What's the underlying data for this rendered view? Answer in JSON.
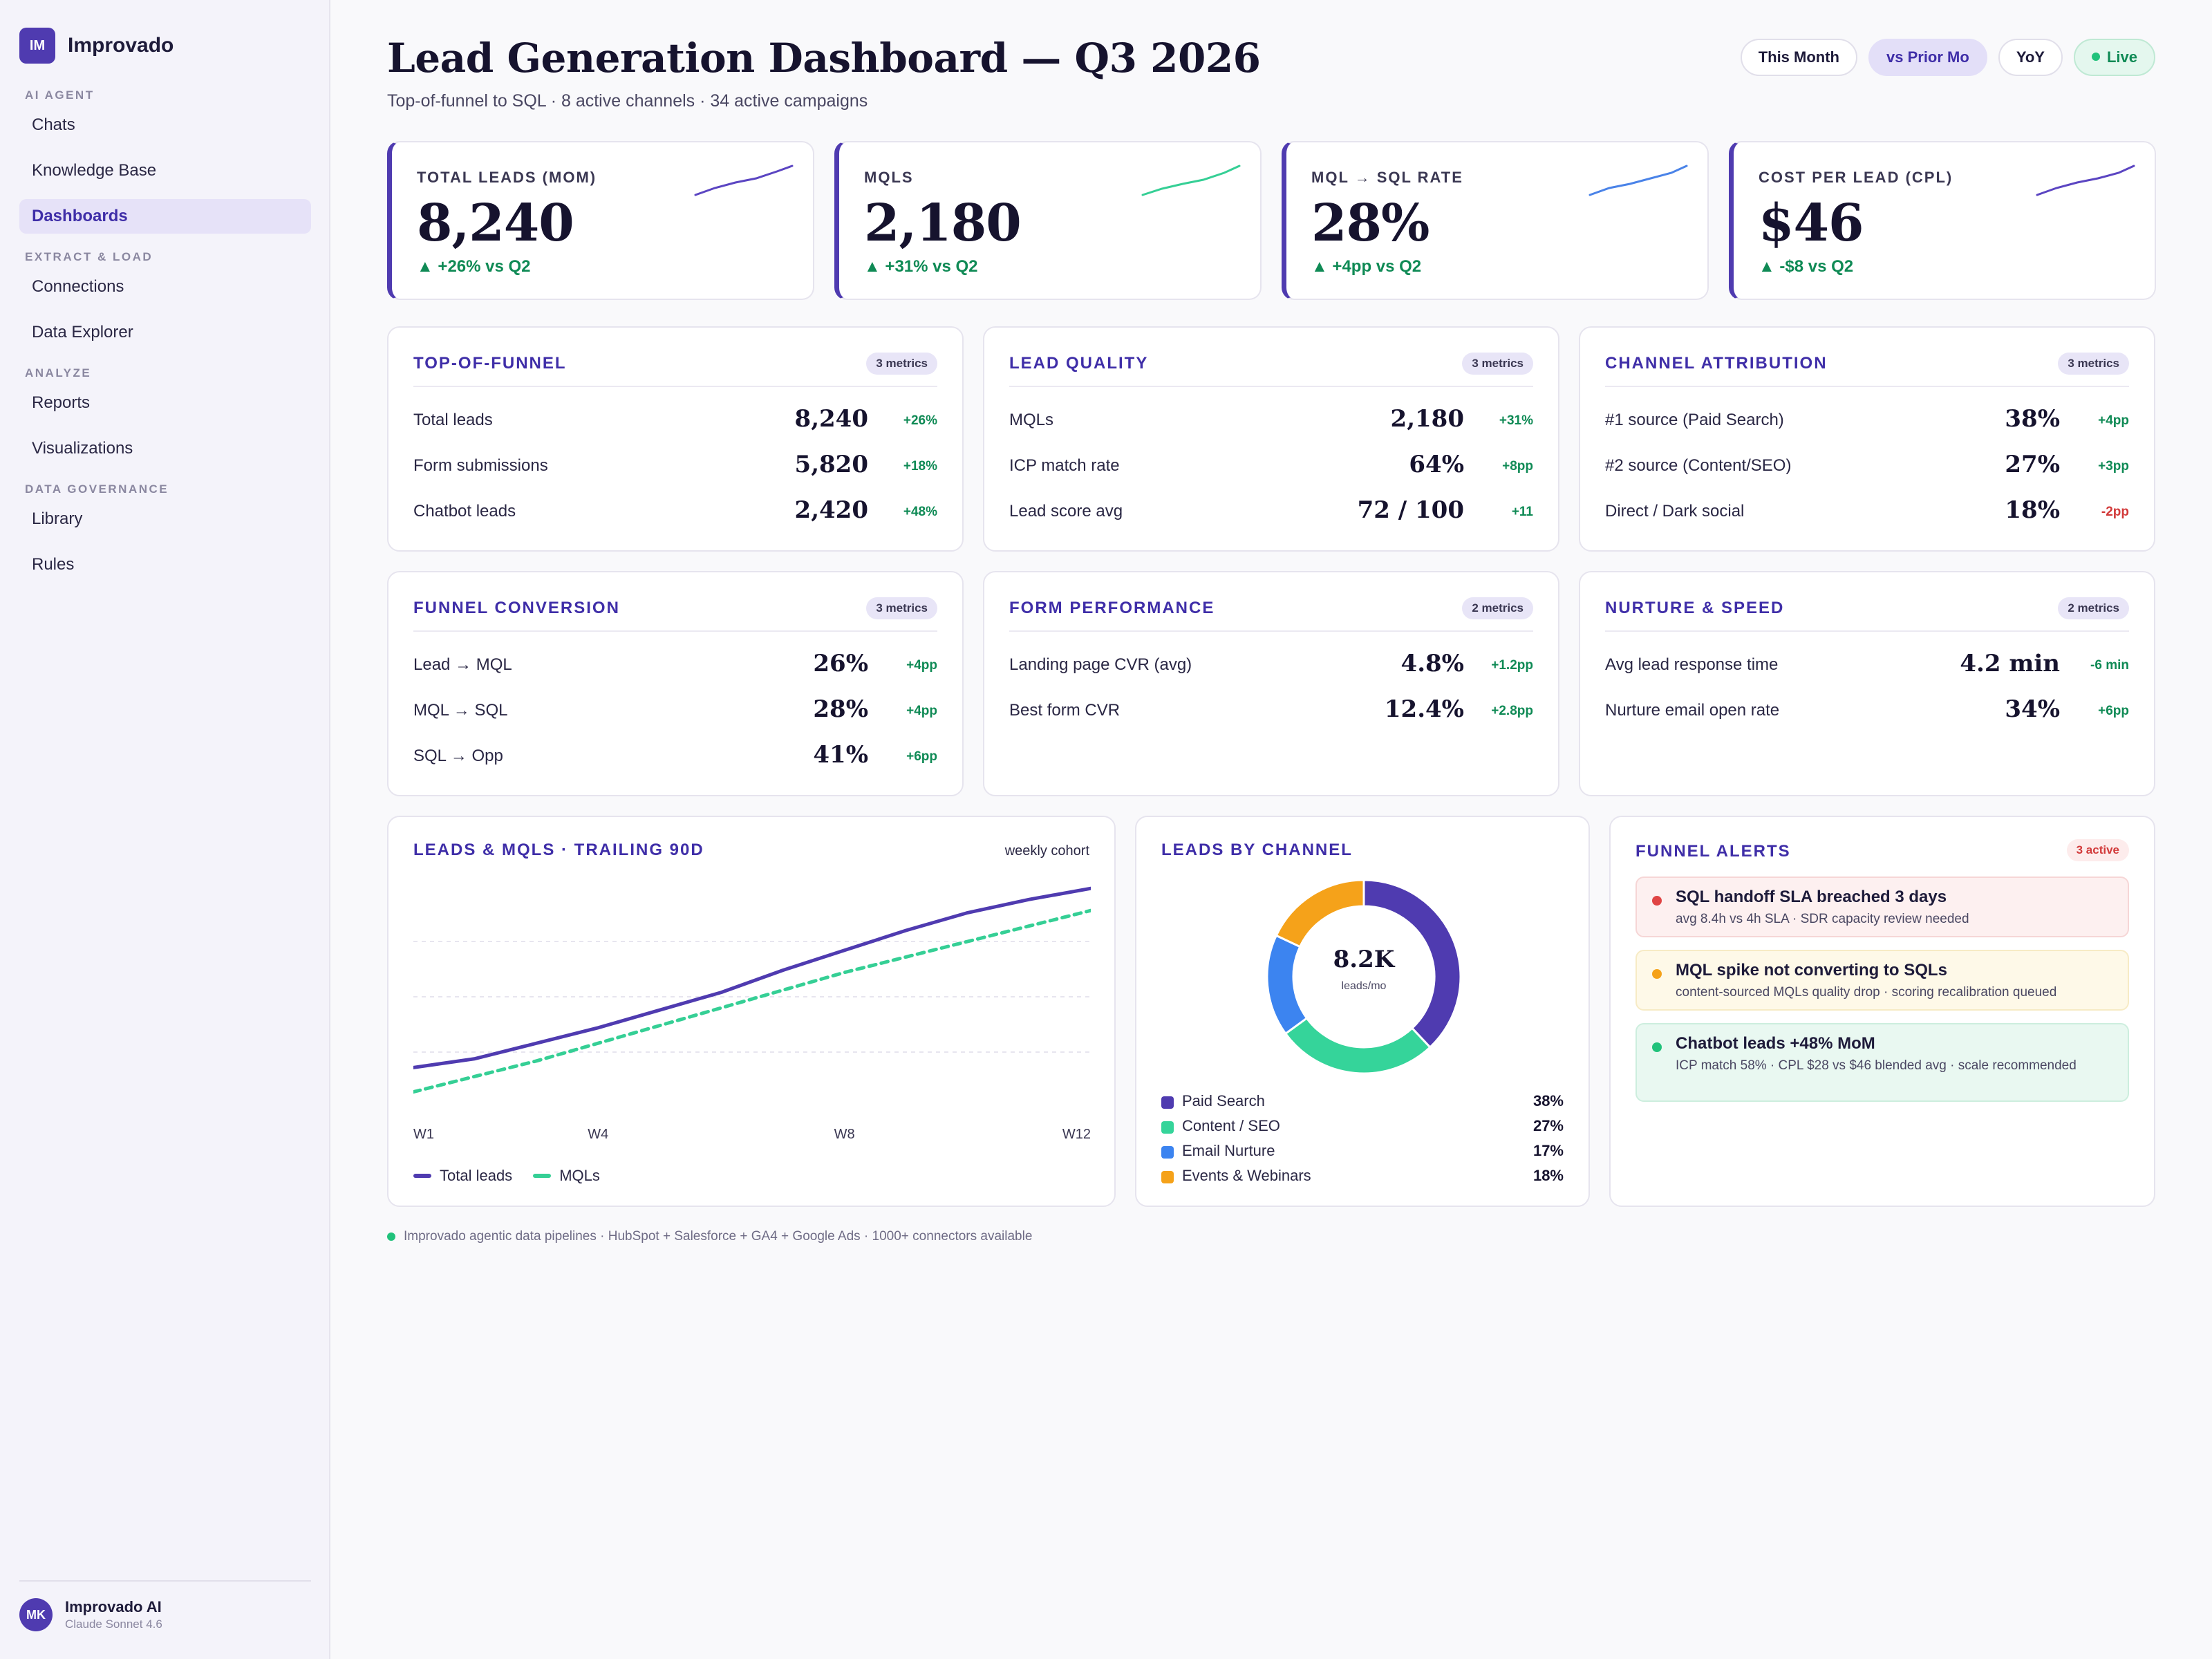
{
  "sidebar": {
    "brand_initials": "IM",
    "brand_name": "Improvado",
    "sections": [
      {
        "title": "AI AGENT",
        "items": [
          "Chats",
          "Knowledge Base",
          "Dashboards"
        ]
      },
      {
        "title": "EXTRACT & LOAD",
        "items": [
          "Connections",
          "Data Explorer"
        ]
      },
      {
        "title": "ANALYZE",
        "items": [
          "Reports",
          "Visualizations"
        ]
      },
      {
        "title": "DATA GOVERNANCE",
        "items": [
          "Library",
          "Rules"
        ]
      }
    ],
    "active_item": "Dashboards",
    "user": {
      "initials": "MK",
      "name": "Improvado AI",
      "model": "Claude Sonnet 4.6"
    }
  },
  "header": {
    "title": "Lead Generation Dashboard — Q3 2026",
    "subtitle": "Top-of-funnel to SQL · 8 active channels · 34 active campaigns",
    "pills": [
      {
        "label": "This Month",
        "state": "default"
      },
      {
        "label": "vs Prior Mo",
        "state": "selected"
      },
      {
        "label": "YoY",
        "state": "default"
      },
      {
        "label": "Live",
        "state": "live"
      }
    ]
  },
  "kpis": [
    {
      "label": "TOTAL LEADS (MOM)",
      "value": "8,240",
      "delta": "▲ +26% vs Q2",
      "spark_color": "#5b45c2"
    },
    {
      "label": "MQLS",
      "value": "2,180",
      "delta": "▲ +31% vs Q2",
      "spark_color": "#35cf95"
    },
    {
      "label": "MQL → SQL RATE",
      "value": "28%",
      "delta": "▲ +4pp vs Q2",
      "spark_color": "#4a83e8"
    },
    {
      "label": "COST PER LEAD (CPL)",
      "value": "$46",
      "delta": "▲ -$8 vs Q2",
      "spark_color": "#5b45c2"
    }
  ],
  "metric_cards": [
    {
      "title": "TOP-OF-FUNNEL",
      "badge": "3 metrics",
      "rows": [
        {
          "label": "Total leads",
          "value": "8,240",
          "delta": "+26%",
          "neg": false
        },
        {
          "label": "Form submissions",
          "value": "5,820",
          "delta": "+18%",
          "neg": false
        },
        {
          "label": "Chatbot leads",
          "value": "2,420",
          "delta": "+48%",
          "neg": false
        }
      ]
    },
    {
      "title": "LEAD QUALITY",
      "badge": "3 metrics",
      "rows": [
        {
          "label": "MQLs",
          "value": "2,180",
          "delta": "+31%",
          "neg": false
        },
        {
          "label": "ICP match rate",
          "value": "64%",
          "delta": "+8pp",
          "neg": false
        },
        {
          "label": "Lead score avg",
          "value": "72 / 100",
          "delta": "+11",
          "neg": false
        }
      ]
    },
    {
      "title": "CHANNEL ATTRIBUTION",
      "badge": "3 metrics",
      "rows": [
        {
          "label": "#1 source (Paid Search)",
          "value": "38%",
          "delta": "+4pp",
          "neg": false
        },
        {
          "label": "#2 source (Content/SEO)",
          "value": "27%",
          "delta": "+3pp",
          "neg": false
        },
        {
          "label": "Direct / Dark social",
          "value": "18%",
          "delta": "-2pp",
          "neg": true
        }
      ]
    },
    {
      "title": "FUNNEL CONVERSION",
      "badge": "3 metrics",
      "rows": [
        {
          "label": "Lead → MQL",
          "value": "26%",
          "delta": "+4pp",
          "neg": false
        },
        {
          "label": "MQL → SQL",
          "value": "28%",
          "delta": "+4pp",
          "neg": false
        },
        {
          "label": "SQL → Opp",
          "value": "41%",
          "delta": "+6pp",
          "neg": false
        }
      ]
    },
    {
      "title": "FORM PERFORMANCE",
      "badge": "2 metrics",
      "rows": [
        {
          "label": "Landing page CVR (avg)",
          "value": "4.8%",
          "delta": "+1.2pp",
          "neg": false
        },
        {
          "label": "Best form CVR",
          "value": "12.4%",
          "delta": "+2.8pp",
          "neg": false
        }
      ]
    },
    {
      "title": "NURTURE & SPEED",
      "badge": "2 metrics",
      "rows": [
        {
          "label": "Avg lead response time",
          "value": "4.2 min",
          "delta": "-6 min",
          "neg": false
        },
        {
          "label": "Nurture email open rate",
          "value": "34%",
          "delta": "+6pp",
          "neg": false
        }
      ]
    }
  ],
  "line_card": {
    "title": "LEADS & MQLS · TRAILING 90D",
    "note": "weekly cohort"
  },
  "donut_card": {
    "title": "LEADS BY CHANNEL",
    "center_value": "8.2K",
    "center_unit": "leads/mo"
  },
  "alerts_card": {
    "title": "FUNNEL ALERTS",
    "badge": "3 active",
    "alerts": [
      {
        "title": "SQL handoff SLA breached 3 days",
        "detail": "avg 8.4h vs 4h SLA · SDR capacity review needed",
        "level": "red"
      },
      {
        "title": "MQL spike not converting to SQLs",
        "detail": "content-sourced MQLs quality drop · scoring recalibration queued",
        "level": "amber"
      },
      {
        "title": "Chatbot leads +48% MoM",
        "detail": "ICP match 58% · CPL $28 vs $46 blended avg · scale recommended",
        "level": "green"
      }
    ]
  },
  "alert_colors": {
    "red": {
      "dot": "#e04444",
      "bg": "#fdf0f0",
      "border": "#f6d6d6"
    },
    "amber": {
      "dot": "#f5a21a",
      "bg": "#fef9e8",
      "border": "#f7ebc5"
    },
    "green": {
      "dot": "#21c27b",
      "bg": "#e9f8f1",
      "border": "#cdeede"
    }
  },
  "footnote": "Improvado agentic data pipelines · HubSpot + Salesforce + GA4 + Google Ads · 1000+ connectors available",
  "chart_data": [
    {
      "type": "line",
      "title": "LEADS & MQLS · TRAILING 90D",
      "x": [
        1,
        2,
        3,
        4,
        5,
        6,
        7,
        8,
        9,
        10,
        11,
        12
      ],
      "x_tick_labels": [
        "W1",
        "W4",
        "W8",
        "W12"
      ],
      "x_tick_positions": [
        1,
        4,
        8,
        12
      ],
      "ylim": [
        0,
        100
      ],
      "grid": true,
      "legend": "bottom-left",
      "series": [
        {
          "name": "Total leads",
          "color": "#4f3bb0",
          "style": "solid",
          "values": [
            18,
            22,
            29,
            36,
            44,
            52,
            62,
            71,
            80,
            88,
            94,
            99
          ]
        },
        {
          "name": "MQLs",
          "color": "#35cf95",
          "style": "dashed",
          "values": [
            7,
            14,
            21,
            29,
            37,
            45,
            53,
            61,
            68,
            75,
            82,
            89
          ]
        }
      ]
    },
    {
      "type": "pie",
      "title": "LEADS BY CHANNEL",
      "labels": [
        "Paid Search",
        "Content / SEO",
        "Email Nurture",
        "Events & Webinars"
      ],
      "values": [
        38,
        27,
        17,
        18
      ],
      "display": [
        "38%",
        "27%",
        "17%",
        "18%"
      ],
      "colors": [
        "#4f3bb0",
        "#35d49a",
        "#3c84f0",
        "#f5a21a"
      ]
    }
  ]
}
